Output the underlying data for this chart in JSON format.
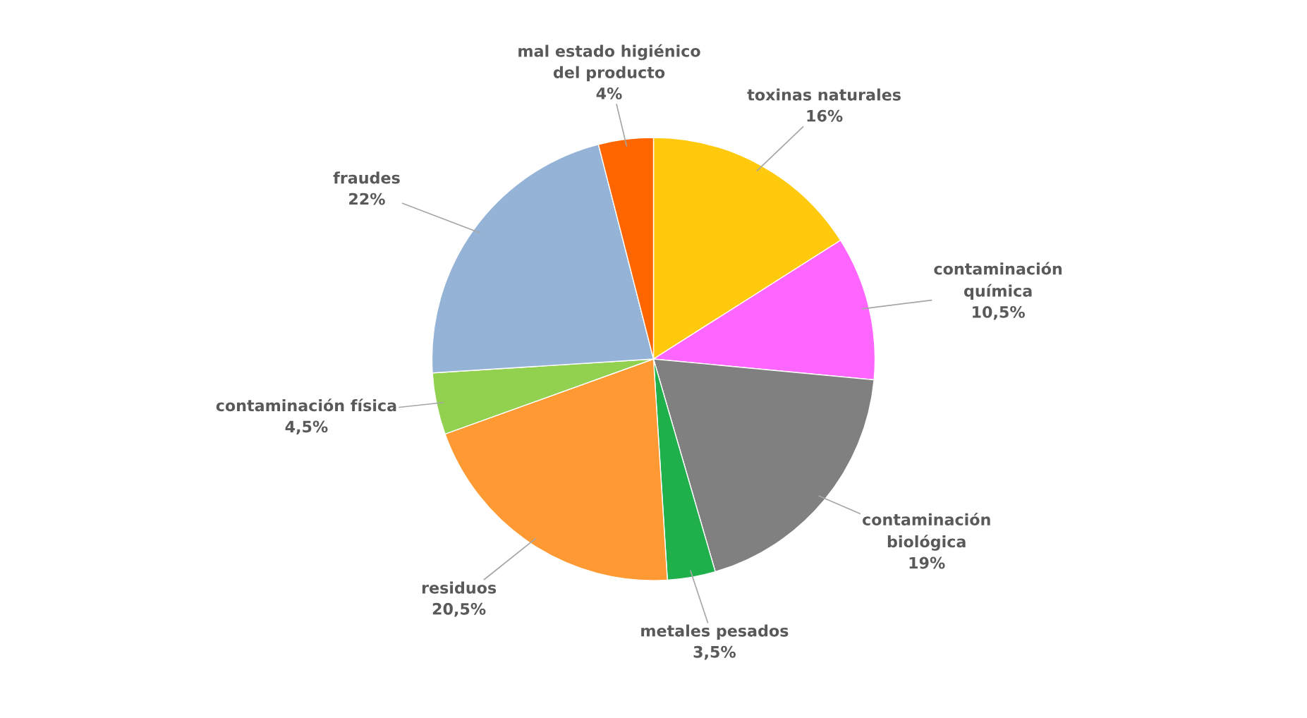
{
  "chart_data": {
    "type": "pie",
    "categories": [
      "toxinas naturales",
      "contaminación\nquímica",
      "contaminación\nbiológica",
      "metales pesados",
      "residuos",
      "contaminación física",
      "fraudes",
      "mal estado higiénico\ndel producto"
    ],
    "values": [
      16,
      10.5,
      19,
      3.5,
      20.5,
      4.5,
      22,
      4
    ],
    "value_labels": [
      "16%",
      "10,5%",
      "19%",
      "3,5%",
      "20,5%",
      "4,5%",
      "22%",
      "4%"
    ],
    "colors": [
      "#ffc90e",
      "#ff66ff",
      "#808080",
      "#1fb04c",
      "#ff9933",
      "#92d050",
      "#95b3d7",
      "#ff6600"
    ],
    "legend": false
  }
}
